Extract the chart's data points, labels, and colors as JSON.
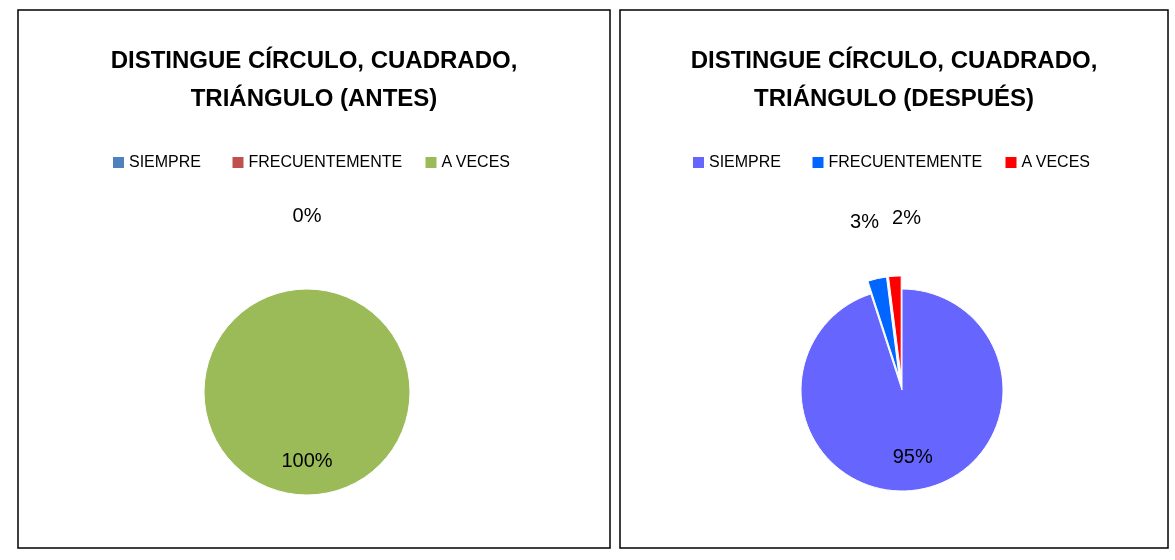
{
  "chart_data": [
    {
      "type": "pie",
      "title": "DISTINGUE CÍRCULO, CUADRADO, TRIÁNGULO (ANTES)",
      "categories": [
        "SIEMPRE",
        "FRECUENTEMENTE",
        "A VECES"
      ],
      "values": [
        0,
        0,
        100
      ],
      "colors": [
        "#4f81bd",
        "#c0504d",
        "#9bbb59"
      ],
      "legend": "top",
      "value_labels": [
        "0%",
        null,
        "100%"
      ]
    },
    {
      "type": "pie",
      "title": "DISTINGUE CÍRCULO, CUADRADO, TRIÁNGULO (DESPUÉS)",
      "categories": [
        "SIEMPRE",
        "FRECUENTEMENTE",
        "A VECES"
      ],
      "values": [
        95,
        3,
        2
      ],
      "colors": [
        "#6666ff",
        "#0066ff",
        "#ff0000"
      ],
      "legend": "top",
      "value_labels": [
        "95%",
        "3%",
        "2%"
      ]
    }
  ]
}
